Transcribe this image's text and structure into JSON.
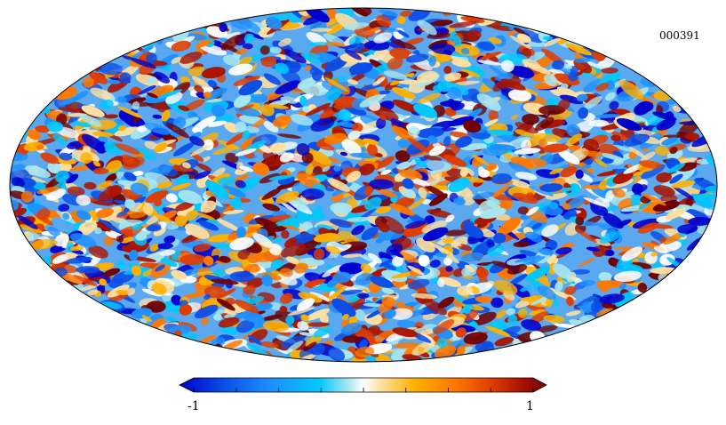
{
  "map": {
    "id_label": "000391",
    "projection": "mollweide",
    "colormap": [
      "#0000cc",
      "#0a4de6",
      "#1e90ff",
      "#00c8ff",
      "#a8e6f0",
      "#ffffff",
      "#ffe0a0",
      "#ffb000",
      "#ff7800",
      "#e03c00",
      "#aa1400",
      "#700000"
    ],
    "outline_color": "#000000",
    "background": "#ffffff"
  },
  "colorbar": {
    "min_label": "-1",
    "max_label": "1",
    "min": -1,
    "max": 1,
    "tick_count": 9
  }
}
